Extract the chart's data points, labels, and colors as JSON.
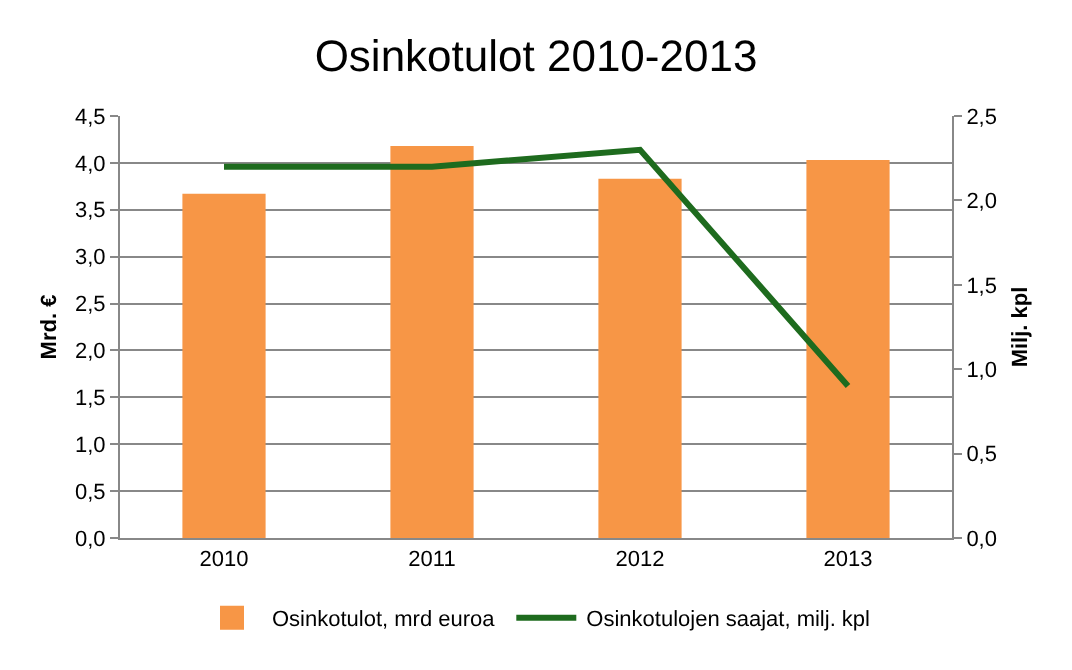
{
  "chart_data": {
    "type": "bar",
    "title": "Osinkotulot 2010-2013",
    "ylabel": "Mrd. €",
    "y2label": "Milj. kpl",
    "categories": [
      "2010",
      "2011",
      "2012",
      "2013"
    ],
    "series": [
      {
        "name": "Osinkotulot, mrd euroa",
        "color": "#f79646",
        "values": [
          3.67,
          4.18,
          3.83,
          4.03
        ]
      },
      {
        "name": "Osinkotulojen saajat, milj. kpl",
        "type": "line",
        "axis": "y2",
        "color": "#1e6b1e",
        "values": [
          2.2,
          2.2,
          2.3,
          0.9
        ]
      }
    ],
    "ylim": [
      0,
      4.5
    ],
    "yticks": [
      {
        "value": 0,
        "label": "0,0"
      },
      {
        "value": 0.5,
        "label": "0,5"
      },
      {
        "value": 1,
        "label": "1,0"
      },
      {
        "value": 1.5,
        "label": "1,5"
      },
      {
        "value": 2,
        "label": "2,0"
      },
      {
        "value": 2.5,
        "label": "2,5"
      },
      {
        "value": 3,
        "label": "3,0"
      },
      {
        "value": 3.5,
        "label": "3,5"
      },
      {
        "value": 4,
        "label": "4,0"
      },
      {
        "value": 4.5,
        "label": "4,5"
      }
    ],
    "y2lim": [
      0,
      2.5
    ],
    "y2ticks": [
      {
        "value": 0,
        "label": "0,0"
      },
      {
        "value": 0.5,
        "label": "0,5"
      },
      {
        "value": 1,
        "label": "1,0"
      },
      {
        "value": 1.5,
        "label": "1,5"
      },
      {
        "value": 2,
        "label": "2,0"
      },
      {
        "value": 2.5,
        "label": "2,5"
      }
    ],
    "grid": "y",
    "legend": "bottom",
    "marker": "none",
    "line_style": "solid"
  }
}
